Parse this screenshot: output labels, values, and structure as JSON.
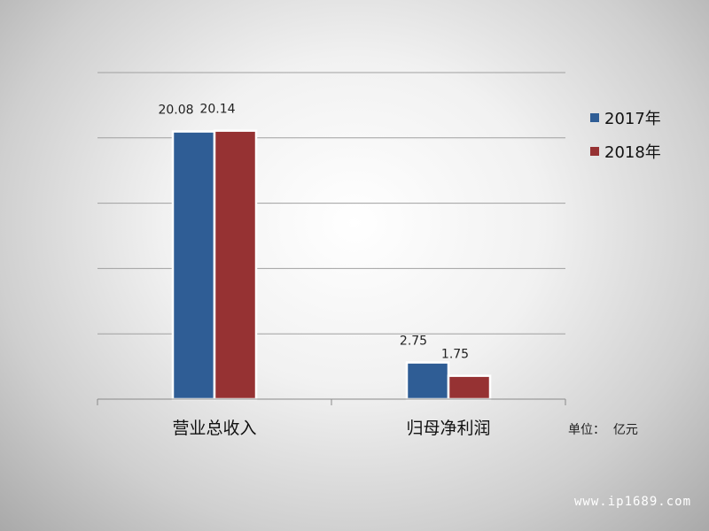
{
  "chart_data": {
    "type": "bar",
    "categories": [
      "营业总收入",
      "归母净利润"
    ],
    "series": [
      {
        "name": "2017年",
        "values": [
          20.08,
          2.75
        ],
        "labels": [
          "20.08",
          "2.75"
        ],
        "color": "#2f5d95"
      },
      {
        "name": "2018年",
        "values": [
          20.14,
          1.75
        ],
        "labels": [
          "20.14",
          "1.75"
        ],
        "color": "#963233"
      }
    ],
    "ylim": [
      0,
      24.5
    ],
    "grid": true,
    "legend_position": "right"
  },
  "unit_label": "单位：  亿元",
  "watermark": "www.ip1689.com"
}
